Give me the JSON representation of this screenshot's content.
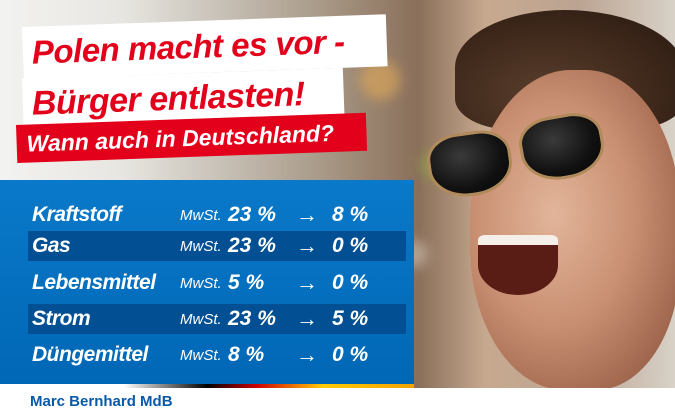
{
  "headline": {
    "line1": "Polen macht es vor -",
    "line2": "Bürger entlasten!",
    "subline": "Wann auch in Deutschland?"
  },
  "tax_table": {
    "rows": [
      {
        "category": "Kraftstoff",
        "label": "MwSt.",
        "from": "23 %",
        "arrow": "→",
        "to": "8 %"
      },
      {
        "category": "Gas",
        "label": "MwSt.",
        "from": "23 %",
        "arrow": "→",
        "to": "0 %"
      },
      {
        "category": "Lebensmittel",
        "label": "MwSt.",
        "from": "5 %",
        "arrow": "→",
        "to": "0 %"
      },
      {
        "category": "Strom",
        "label": "MwSt.",
        "from": "23 %",
        "arrow": "→",
        "to": "5 %"
      },
      {
        "category": "Düngemittel",
        "label": "MwSt.",
        "from": "8 %",
        "arrow": "→",
        "to": "0 %"
      }
    ]
  },
  "footer": {
    "author": "Marc Bernhard MdB"
  },
  "colors": {
    "red": "#e3001b",
    "blue": "#0a79c9",
    "dark_blue": "#034f93"
  }
}
